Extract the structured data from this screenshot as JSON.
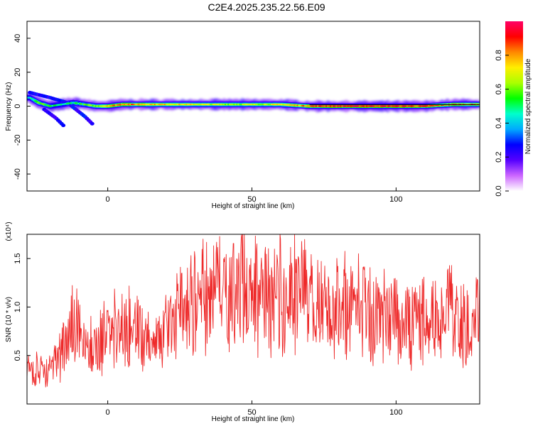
{
  "figure": {
    "title": "C2E4.2025.235.22.56.E09"
  },
  "chart_data": [
    {
      "type": "heatmap",
      "xlabel": "Height of straight line (km)",
      "ylabel": "Frequency (Hz)",
      "xlim": [
        -28,
        129
      ],
      "ylim": [
        -50,
        50
      ],
      "xticks": [
        0,
        50,
        100
      ],
      "yticks": [
        -40,
        -20,
        0,
        20,
        40
      ],
      "grid": false,
      "reference_line": {
        "y": 0,
        "x_from": 70,
        "x_to": 129
      },
      "colorbar": {
        "label": "Normalized spectral amplitude",
        "range": [
          0,
          1
        ],
        "ticks": [
          0.0,
          0.2,
          0.4,
          0.6,
          0.8
        ],
        "colors": [
          "#ffffff",
          "#cc66ff",
          "#5500ff",
          "#0000ff",
          "#00aaff",
          "#00ffcc",
          "#00ff00",
          "#aaff00",
          "#ffee00",
          "#ff8800",
          "#ff0000",
          "#ff0066"
        ]
      },
      "dominant_frequency": {
        "x": [
          -27,
          -24,
          -20,
          -16,
          -12,
          -8,
          -4,
          0,
          5,
          10,
          20,
          30,
          40,
          50,
          60,
          70,
          80,
          90,
          100,
          110,
          120,
          129
        ],
        "y": [
          5,
          2,
          0,
          1,
          2,
          1,
          0,
          0,
          1,
          1,
          1,
          1,
          1,
          1,
          1,
          0,
          0,
          0,
          0,
          0,
          1,
          1
        ],
        "amplitude": [
          0.4,
          0.6,
          0.5,
          0.45,
          0.5,
          0.55,
          0.6,
          0.8,
          0.85,
          0.8,
          0.75,
          0.7,
          0.65,
          0.65,
          0.7,
          0.85,
          0.9,
          0.9,
          0.9,
          0.85,
          0.8,
          0.8
        ]
      },
      "secondary_branches": [
        {
          "x": [
            -27,
            -20,
            -14,
            -8,
            -5
          ],
          "y": [
            8,
            5,
            2,
            -6,
            -11
          ],
          "amplitude": 0.2
        },
        {
          "x": [
            -22,
            -18,
            -15
          ],
          "y": [
            -2,
            -7,
            -12
          ],
          "amplitude": 0.2
        }
      ]
    },
    {
      "type": "line",
      "xlabel": "Height of straight line (km)",
      "ylabel": "SNR (10 * v/v)",
      "y_multiplier": "(x10⁴)",
      "xlim": [
        -28,
        129
      ],
      "ylim": [
        0,
        17500
      ],
      "xticks": [
        0,
        50,
        100
      ],
      "yticks": [
        5000,
        10000,
        15000
      ],
      "ytick_labels": [
        "0.5",
        "1.0",
        "1.5"
      ],
      "grid": false,
      "line_color": "#ee2a2a",
      "series": [
        {
          "x": [
            -28,
            -25,
            -22,
            -18,
            -14,
            -12,
            -10,
            -8,
            -6,
            -4,
            -2,
            0,
            5,
            10,
            15,
            20,
            25,
            30,
            35,
            40,
            45,
            50,
            55,
            60,
            65,
            67,
            70,
            75,
            80,
            85,
            90,
            95,
            100,
            105,
            110,
            115,
            120,
            125,
            129
          ],
          "y": [
            3500,
            4000,
            3000,
            4500,
            6000,
            9000,
            7500,
            5500,
            6000,
            5500,
            7000,
            7500,
            8000,
            7500,
            6500,
            7500,
            9000,
            10500,
            11000,
            11500,
            11500,
            12000,
            11000,
            11500,
            11500,
            12500,
            10500,
            9500,
            10500,
            10500,
            10000,
            9000,
            9000,
            8500,
            8500,
            9000,
            9000,
            8500,
            9000
          ]
        }
      ]
    }
  ]
}
